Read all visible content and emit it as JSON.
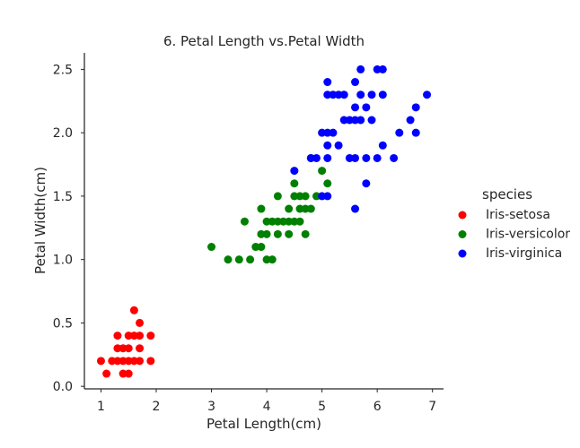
{
  "chart_data": {
    "type": "scatter",
    "title": "6. Petal Length vs.Petal Width",
    "xlabel": "Petal Length(cm)",
    "ylabel": "Petal Width(cm)",
    "xlim": [
      0.7,
      7.2
    ],
    "ylim": [
      -0.02,
      2.63
    ],
    "xticks": [
      1,
      2,
      3,
      4,
      5,
      6,
      7
    ],
    "xtick_labels": [
      "1",
      "2",
      "3",
      "4",
      "5",
      "6",
      "7"
    ],
    "yticks": [
      0.0,
      0.5,
      1.0,
      1.5,
      2.0,
      2.5
    ],
    "ytick_labels": [
      "0.0",
      "0.5",
      "1.0",
      "1.5",
      "2.0",
      "2.5"
    ],
    "grid": false,
    "legend": {
      "title": "species",
      "placement": "right"
    },
    "series": [
      {
        "name": "Iris-setosa",
        "color": "#ff0000",
        "points": [
          [
            1.0,
            0.2
          ],
          [
            1.1,
            0.1
          ],
          [
            1.2,
            0.2
          ],
          [
            1.3,
            0.2
          ],
          [
            1.3,
            0.3
          ],
          [
            1.3,
            0.4
          ],
          [
            1.4,
            0.1
          ],
          [
            1.4,
            0.2
          ],
          [
            1.4,
            0.3
          ],
          [
            1.5,
            0.1
          ],
          [
            1.5,
            0.2
          ],
          [
            1.5,
            0.3
          ],
          [
            1.5,
            0.4
          ],
          [
            1.6,
            0.2
          ],
          [
            1.6,
            0.4
          ],
          [
            1.6,
            0.6
          ],
          [
            1.7,
            0.2
          ],
          [
            1.7,
            0.3
          ],
          [
            1.7,
            0.4
          ],
          [
            1.7,
            0.5
          ],
          [
            1.9,
            0.2
          ],
          [
            1.9,
            0.4
          ]
        ]
      },
      {
        "name": "Iris-versicolor",
        "color": "#008000",
        "points": [
          [
            3.0,
            1.1
          ],
          [
            3.3,
            1.0
          ],
          [
            3.5,
            1.0
          ],
          [
            3.6,
            1.3
          ],
          [
            3.7,
            1.0
          ],
          [
            3.8,
            1.1
          ],
          [
            3.9,
            1.1
          ],
          [
            3.9,
            1.2
          ],
          [
            3.9,
            1.4
          ],
          [
            4.0,
            1.0
          ],
          [
            4.0,
            1.2
          ],
          [
            4.0,
            1.3
          ],
          [
            4.1,
            1.0
          ],
          [
            4.1,
            1.3
          ],
          [
            4.2,
            1.2
          ],
          [
            4.2,
            1.3
          ],
          [
            4.2,
            1.5
          ],
          [
            4.3,
            1.3
          ],
          [
            4.4,
            1.2
          ],
          [
            4.4,
            1.3
          ],
          [
            4.4,
            1.4
          ],
          [
            4.5,
            1.3
          ],
          [
            4.5,
            1.5
          ],
          [
            4.5,
            1.6
          ],
          [
            4.6,
            1.3
          ],
          [
            4.6,
            1.4
          ],
          [
            4.6,
            1.5
          ],
          [
            4.7,
            1.2
          ],
          [
            4.7,
            1.4
          ],
          [
            4.7,
            1.5
          ],
          [
            4.8,
            1.4
          ],
          [
            4.8,
            1.8
          ],
          [
            4.9,
            1.5
          ],
          [
            5.0,
            1.7
          ],
          [
            5.1,
            1.6
          ]
        ]
      },
      {
        "name": "Iris-virginica",
        "color": "#0000ff",
        "points": [
          [
            4.5,
            1.7
          ],
          [
            4.8,
            1.8
          ],
          [
            4.9,
            1.8
          ],
          [
            5.0,
            1.5
          ],
          [
            5.0,
            2.0
          ],
          [
            5.1,
            1.5
          ],
          [
            5.1,
            1.8
          ],
          [
            5.1,
            1.9
          ],
          [
            5.1,
            2.0
          ],
          [
            5.1,
            2.3
          ],
          [
            5.1,
            2.4
          ],
          [
            5.2,
            2.0
          ],
          [
            5.2,
            2.3
          ],
          [
            5.3,
            1.9
          ],
          [
            5.3,
            2.3
          ],
          [
            5.4,
            2.1
          ],
          [
            5.4,
            2.3
          ],
          [
            5.5,
            1.8
          ],
          [
            5.5,
            2.1
          ],
          [
            5.6,
            1.4
          ],
          [
            5.6,
            1.8
          ],
          [
            5.6,
            2.1
          ],
          [
            5.6,
            2.2
          ],
          [
            5.6,
            2.4
          ],
          [
            5.7,
            2.1
          ],
          [
            5.7,
            2.3
          ],
          [
            5.7,
            2.5
          ],
          [
            5.8,
            1.6
          ],
          [
            5.8,
            1.8
          ],
          [
            5.8,
            2.2
          ],
          [
            5.9,
            2.1
          ],
          [
            5.9,
            2.3
          ],
          [
            6.0,
            1.8
          ],
          [
            6.0,
            2.5
          ],
          [
            6.1,
            1.9
          ],
          [
            6.1,
            2.3
          ],
          [
            6.1,
            2.5
          ],
          [
            6.3,
            1.8
          ],
          [
            6.4,
            2.0
          ],
          [
            6.6,
            2.1
          ],
          [
            6.7,
            2.0
          ],
          [
            6.7,
            2.2
          ],
          [
            6.9,
            2.3
          ]
        ]
      }
    ]
  }
}
